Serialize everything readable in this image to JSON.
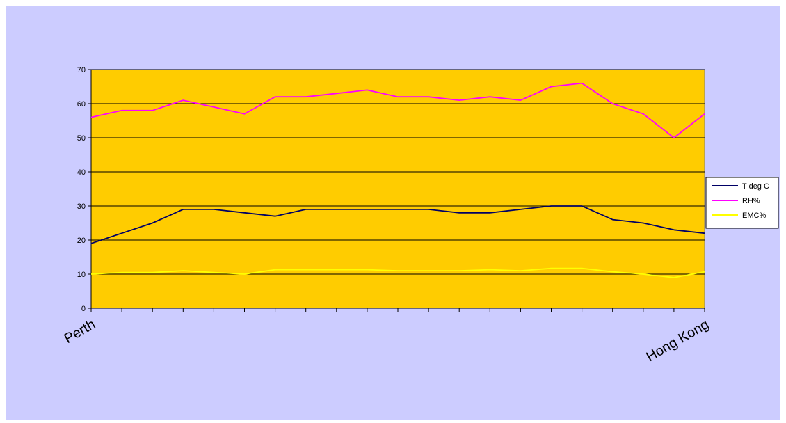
{
  "chart_data": {
    "type": "line",
    "title": "",
    "xlabel": "",
    "ylabel": "",
    "ylim": [
      0,
      70
    ],
    "yticks": [
      0,
      10,
      20,
      30,
      40,
      50,
      60,
      70
    ],
    "grid": true,
    "legend": "right",
    "point_count": 21,
    "category_labels": [
      {
        "index": 0,
        "label": "Perth"
      },
      {
        "index": 20,
        "label": "Hong Kong"
      }
    ],
    "series": [
      {
        "name": "T deg C",
        "color": "#000066",
        "values": [
          19,
          22,
          25,
          29,
          29,
          28,
          27,
          29,
          29,
          29,
          29,
          29,
          28,
          28,
          29,
          30,
          30,
          26,
          25,
          23,
          22
        ]
      },
      {
        "name": "RH%",
        "color": "#ff00ff",
        "values": [
          56,
          58,
          58,
          61,
          59,
          57,
          62,
          62,
          63,
          64,
          62,
          62,
          61,
          62,
          61,
          65,
          66,
          60,
          57,
          50,
          57
        ]
      },
      {
        "name": "EMC%",
        "color": "#ffff00",
        "values": [
          10,
          10.5,
          10.5,
          11,
          10.5,
          10,
          11.3,
          11.3,
          11.3,
          11.3,
          11,
          11,
          11,
          11.3,
          11,
          11.7,
          11.7,
          10.7,
          10,
          9,
          10.7
        ]
      }
    ],
    "colors": {
      "chart_background": "#ccccff",
      "plot_background": "#ffcc00",
      "gridline": "#000000"
    }
  }
}
